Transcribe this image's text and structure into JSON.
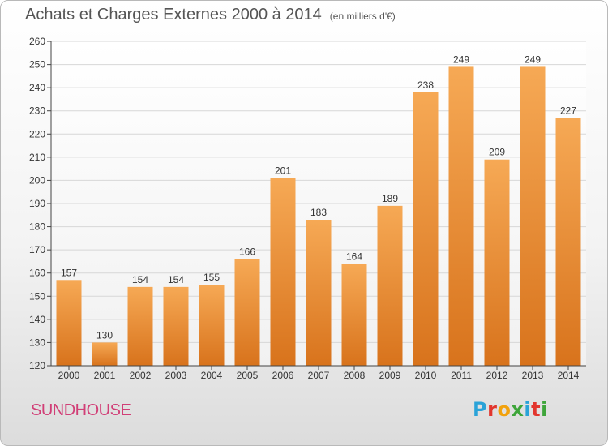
{
  "title": "Achats et Charges Externes 2000 à 2014",
  "subtitle": "(en milliers d'€)",
  "city": "SUNDHOUSE",
  "logo": {
    "letters": [
      "P",
      "r",
      "o",
      "x",
      "i",
      "t",
      "i"
    ],
    "colors": [
      "#2aa3d8",
      "#e2362e",
      "#f2a20d",
      "#3ea53a",
      "#2aa3d8",
      "#e2362e",
      "#3ea53a"
    ]
  },
  "colors": {
    "bar_light": "#f6a955",
    "bar_dark": "#d8731c",
    "grid": "#d7d7d7",
    "axis": "#444444",
    "city": "#d13f77"
  },
  "chart_data": {
    "type": "bar",
    "categories": [
      "2000",
      "2001",
      "2002",
      "2003",
      "2004",
      "2005",
      "2006",
      "2007",
      "2008",
      "2009",
      "2010",
      "2011",
      "2012",
      "2013",
      "2014"
    ],
    "values": [
      157,
      130,
      154,
      154,
      155,
      166,
      201,
      183,
      164,
      189,
      238,
      249,
      209,
      249,
      227
    ],
    "ylim": [
      120,
      260
    ],
    "yticks": [
      120,
      130,
      140,
      150,
      160,
      170,
      180,
      190,
      200,
      210,
      220,
      230,
      240,
      250,
      260
    ],
    "grid": true,
    "xlabel": "",
    "ylabel": ""
  }
}
